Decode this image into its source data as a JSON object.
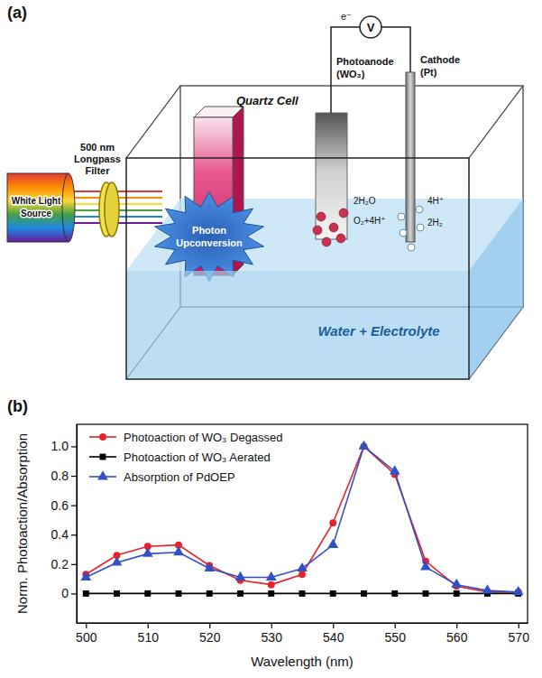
{
  "diagram": {
    "panel_label": "(a)",
    "light_source": [
      "White Light",
      "Source"
    ],
    "filter": [
      "500 nm",
      "Longpass",
      "Filter"
    ],
    "cell": "Quartz Cell",
    "upconversion": [
      "Photon",
      "Upconversion"
    ],
    "photoanode": [
      "Photoanode",
      "(WO₃)"
    ],
    "cathode": [
      "Cathode",
      "(Pt)"
    ],
    "meter": "V",
    "electron": "e⁻",
    "anode_reaction": [
      "2H₂O",
      "O₂+4H⁺"
    ],
    "cathode_reaction": [
      "4H⁺",
      "2H₂"
    ],
    "electrolyte": "Water + Electrolyte"
  },
  "chart_data": {
    "type": "line",
    "panel_label": "(b)",
    "x_label": "Wavelength (nm)",
    "y_label": "Norm. Photoaction/Absorption",
    "x": [
      500,
      505,
      510,
      515,
      520,
      525,
      530,
      535,
      540,
      545,
      550,
      555,
      560,
      565,
      570
    ],
    "series": [
      {
        "name": "Photoaction of WO₃ Degassed",
        "color": "#e8202a",
        "marker": "circle",
        "line_style": "solid",
        "values": [
          0.13,
          0.26,
          0.32,
          0.33,
          0.19,
          0.09,
          0.06,
          0.13,
          0.48,
          1.0,
          0.81,
          0.22,
          0.05,
          0.01,
          0.01
        ]
      },
      {
        "name": "Photoaction of WO₃ Aerated",
        "color": "#000000",
        "marker": "square",
        "line_style": "solid",
        "values": [
          0,
          0,
          0,
          0,
          0,
          0,
          0,
          0,
          0,
          0,
          0,
          0,
          0,
          0,
          0
        ]
      },
      {
        "name": "Absorption of PdOEP",
        "color": "#3050c8",
        "marker": "triangle",
        "line_style": "solid",
        "values": [
          0.11,
          0.21,
          0.27,
          0.28,
          0.17,
          0.11,
          0.11,
          0.17,
          0.33,
          1.0,
          0.83,
          0.18,
          0.06,
          0.02,
          0.01
        ]
      }
    ],
    "xlim": [
      498.5,
      571.5
    ],
    "xticks": [
      500,
      510,
      520,
      530,
      540,
      550,
      560,
      570
    ],
    "ylim": [
      -0.2,
      1.15
    ],
    "yticks": [
      0,
      0.2,
      0.4,
      0.6,
      0.8,
      {
        "value": 1,
        "label": "1.0"
      }
    ],
    "grid": false,
    "legend": "top-left"
  }
}
